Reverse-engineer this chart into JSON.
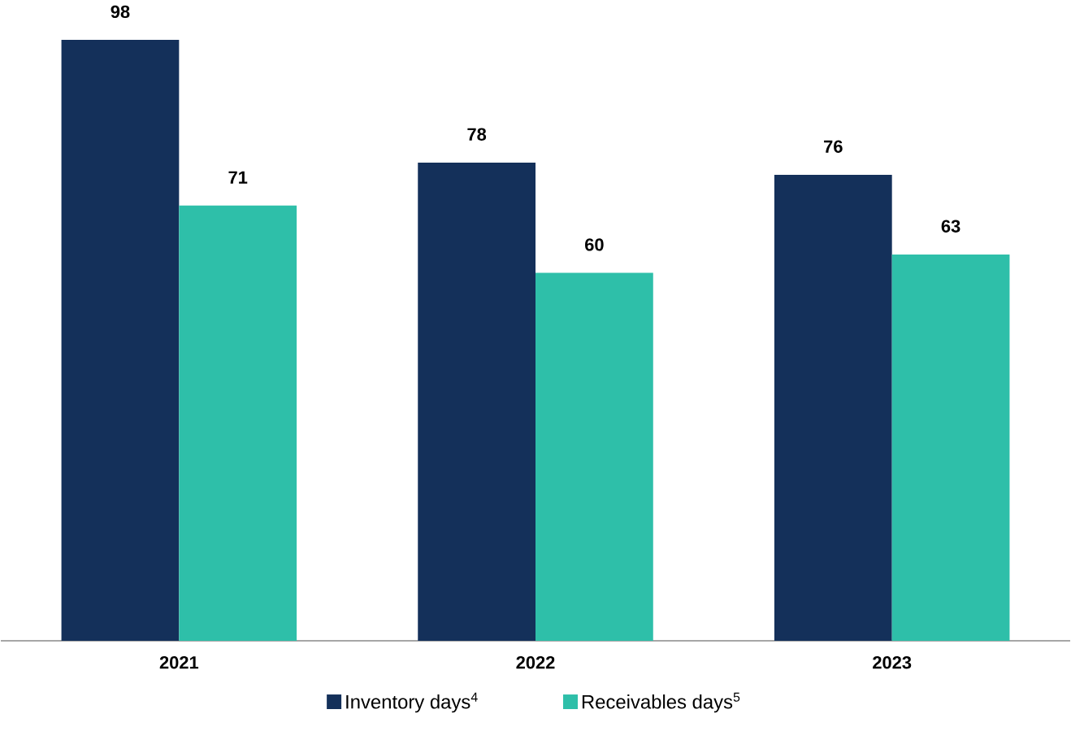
{
  "chart_data": {
    "type": "bar",
    "categories": [
      "2021",
      "2022",
      "2023"
    ],
    "series": [
      {
        "name": "Inventory days$^{4}$",
        "color": "#14305a",
        "values": [
          98,
          78,
          76
        ]
      },
      {
        "name": "Receivables days$^{5}$",
        "color": "#2ebfa9",
        "values": [
          71,
          60,
          63
        ]
      }
    ],
    "data_labels": true,
    "legend": "bottom",
    "tick_labels": "x"
  }
}
